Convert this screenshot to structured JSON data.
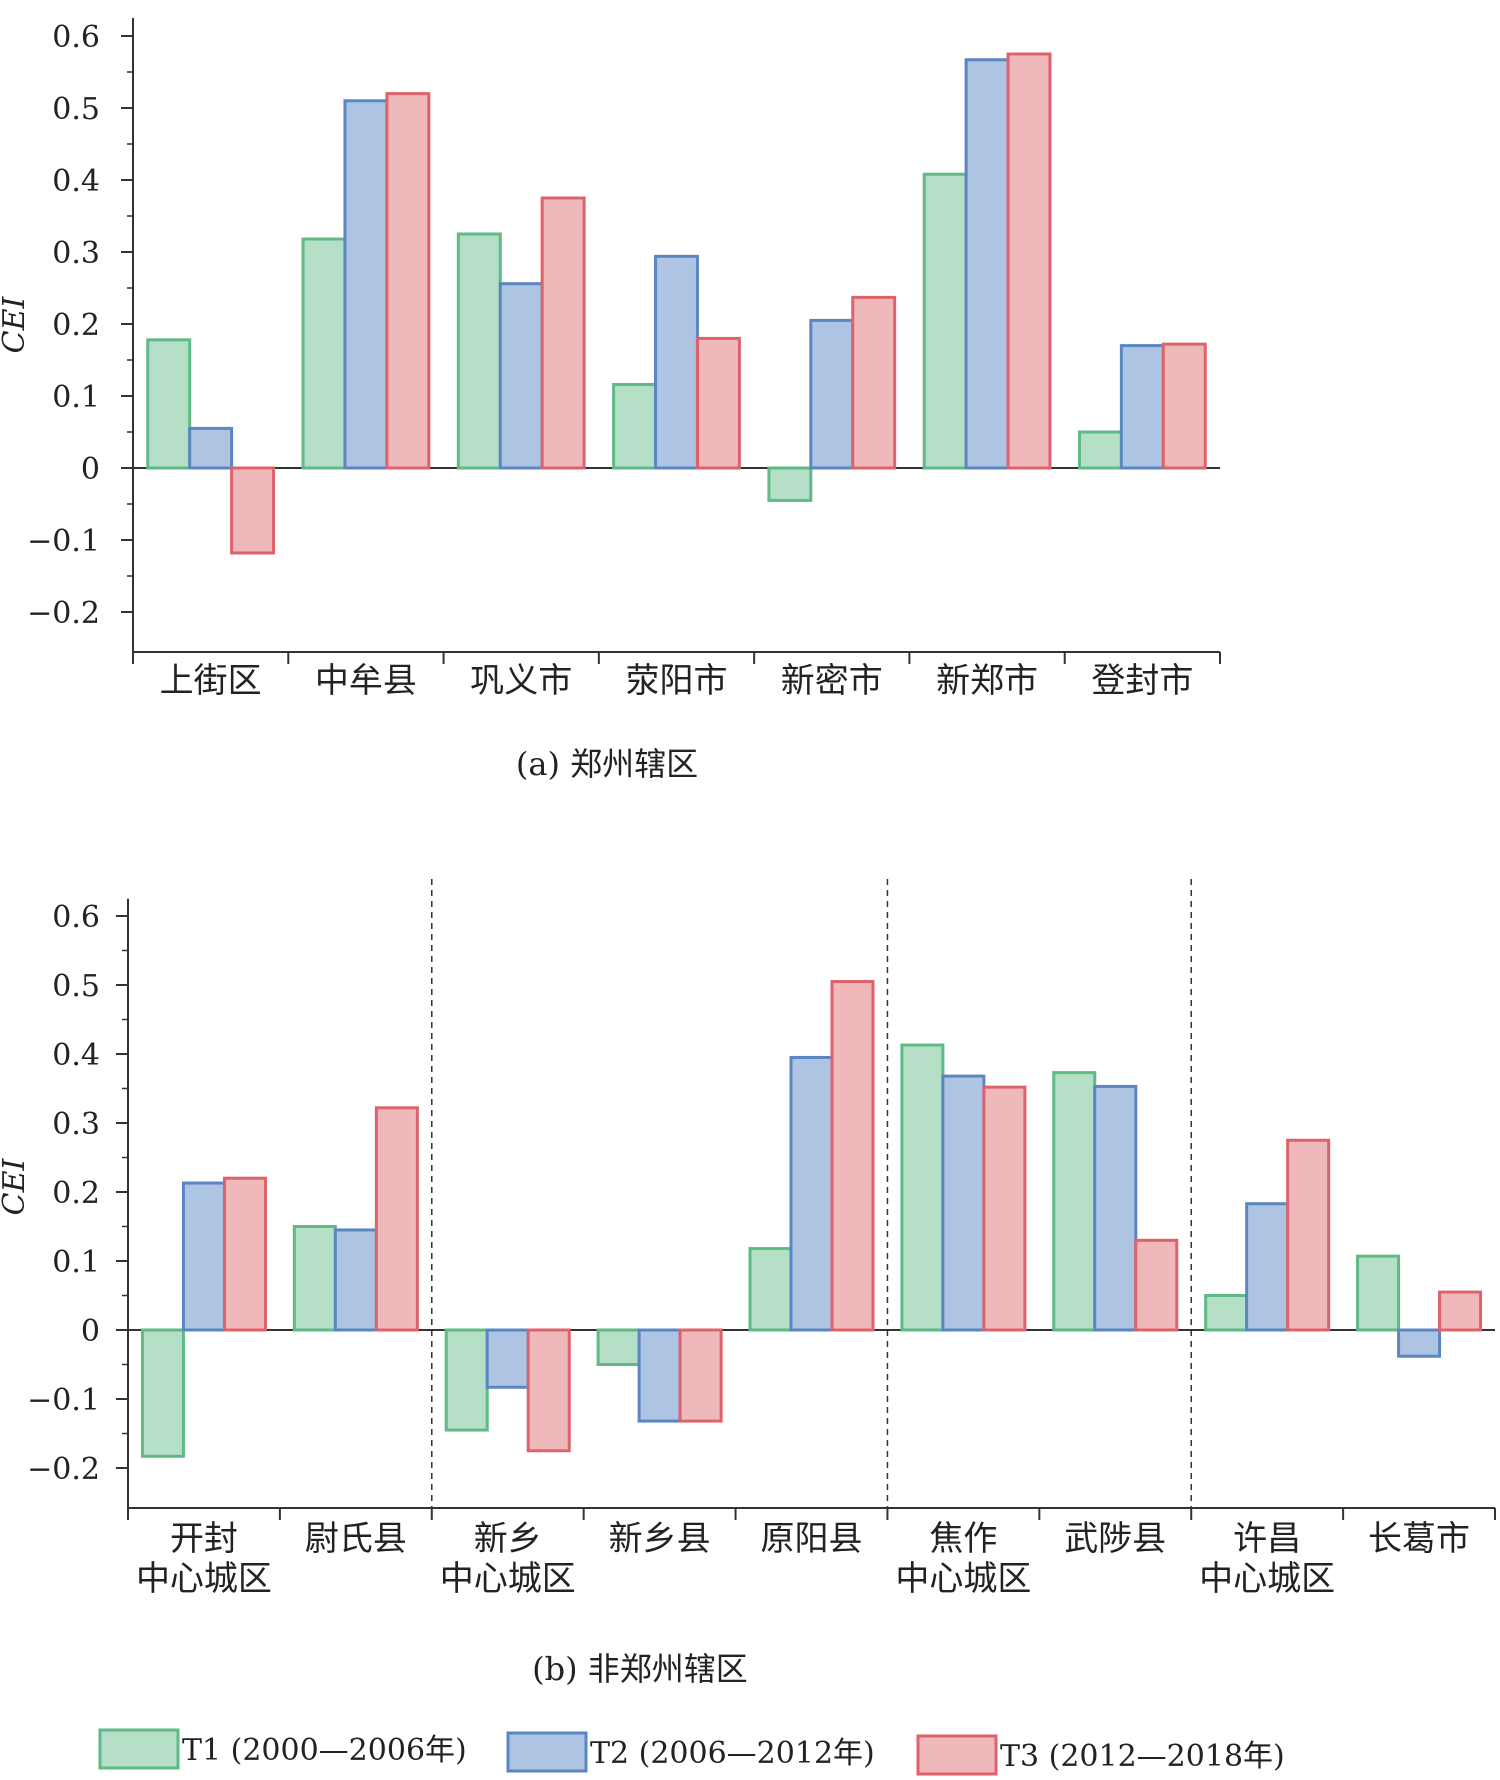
{
  "colors": {
    "T1": {
      "fill": "#b5dfc6",
      "stroke": "#5fba85"
    },
    "T2": {
      "fill": "#adc4e2",
      "stroke": "#5c86c3"
    },
    "T3": {
      "fill": "#efb9bb",
      "stroke": "#dd6269"
    },
    "axis": "#333333"
  },
  "legend": [
    {
      "key": "T1",
      "label": "T1 (2000—2006年)"
    },
    {
      "key": "T2",
      "label": "T2 (2006—2012年)"
    },
    {
      "key": "T3",
      "label": "T3 (2012—2018年)"
    }
  ],
  "chart_data": [
    {
      "type": "bar",
      "caption": "(a) 郑州辖区",
      "ylabel": "CEI",
      "ylim": [
        -0.25,
        0.6
      ],
      "yticks": [
        "0.6",
        "0.5",
        "0.4",
        "0.3",
        "0.2",
        "0.1",
        "0",
        "−0.1",
        "−0.2"
      ],
      "categories": [
        [
          "上街区"
        ],
        [
          "中牟县"
        ],
        [
          "巩义市"
        ],
        [
          "荥阳市"
        ],
        [
          "新密市"
        ],
        [
          "新郑市"
        ],
        [
          "登封市"
        ]
      ],
      "series": [
        {
          "name": "T1",
          "values": [
            0.178,
            0.318,
            0.325,
            0.116,
            -0.045,
            0.408,
            0.05
          ]
        },
        {
          "name": "T2",
          "values": [
            0.055,
            0.51,
            0.256,
            0.294,
            0.205,
            0.567,
            0.17
          ]
        },
        {
          "name": "T3",
          "values": [
            -0.118,
            0.52,
            0.375,
            0.18,
            0.237,
            0.575,
            0.172
          ]
        }
      ],
      "group_dividers_after": []
    },
    {
      "type": "bar",
      "caption": "(b) 非郑州辖区",
      "ylabel": "CEI",
      "ylim": [
        -0.25,
        0.6
      ],
      "yticks": [
        "0.6",
        "0.5",
        "0.4",
        "0.3",
        "0.2",
        "0.1",
        "0",
        "−0.1",
        "−0.2"
      ],
      "categories": [
        [
          "开封",
          "中心城区"
        ],
        [
          "尉氏县"
        ],
        [
          "新乡",
          "中心城区"
        ],
        [
          "新乡县"
        ],
        [
          "原阳县"
        ],
        [
          "焦作",
          "中心城区"
        ],
        [
          "武陟县"
        ],
        [
          "许昌",
          "中心城区"
        ],
        [
          "长葛市"
        ]
      ],
      "series": [
        {
          "name": "T1",
          "values": [
            -0.183,
            0.15,
            -0.145,
            -0.05,
            0.118,
            0.413,
            0.373,
            0.05,
            0.107
          ]
        },
        {
          "name": "T2",
          "values": [
            0.213,
            0.145,
            -0.083,
            -0.132,
            0.395,
            0.368,
            0.353,
            0.183,
            -0.038
          ]
        },
        {
          "name": "T3",
          "values": [
            0.22,
            0.322,
            -0.175,
            -0.132,
            0.505,
            0.352,
            0.13,
            0.275,
            0.055
          ]
        }
      ],
      "group_dividers_after": [
        1,
        4,
        6
      ]
    }
  ]
}
